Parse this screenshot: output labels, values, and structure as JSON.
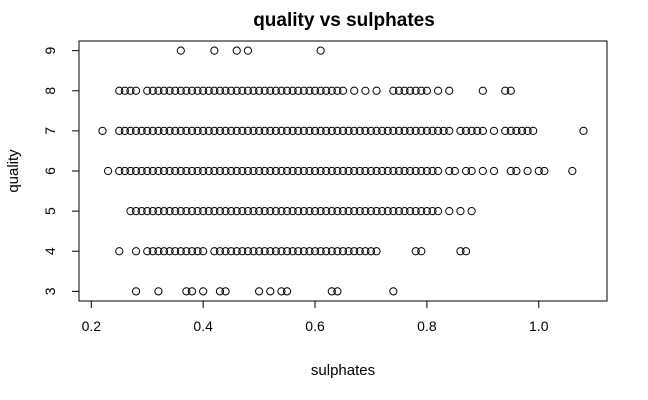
{
  "chart_data": {
    "type": "scatter",
    "title": "quality vs sulphates",
    "xlabel": "sulphates",
    "ylabel": "quality",
    "xlim": [
      0.178,
      1.122
    ],
    "ylim": [
      2.76,
      9.24
    ],
    "xticks": [
      0.2,
      0.4,
      0.6,
      0.8,
      1.0
    ],
    "xtick_labels": [
      "0.2",
      "0.4",
      "0.6",
      "0.8",
      "1.0"
    ],
    "yticks": [
      3,
      4,
      5,
      6,
      7,
      8,
      9
    ],
    "ytick_labels": [
      "3",
      "4",
      "5",
      "6",
      "7",
      "8",
      "9"
    ],
    "marker": "open-circle",
    "marker_color": "#000000",
    "grid": false,
    "legend": "none",
    "points": [
      {
        "y": 9,
        "x": [
          0.36,
          0.42,
          0.46,
          0.48,
          0.61
        ]
      },
      {
        "y": 8,
        "x": [
          0.25,
          0.26,
          0.27,
          0.28,
          0.3,
          0.31,
          0.32,
          0.33,
          0.34,
          0.35,
          0.36,
          0.37,
          0.38,
          0.39,
          0.4,
          0.41,
          0.42,
          0.43,
          0.44,
          0.45,
          0.46,
          0.47,
          0.48,
          0.49,
          0.5,
          0.51,
          0.52,
          0.53,
          0.54,
          0.55,
          0.56,
          0.57,
          0.58,
          0.59,
          0.6,
          0.61,
          0.62,
          0.63,
          0.64,
          0.65,
          0.67,
          0.69,
          0.71,
          0.74,
          0.75,
          0.76,
          0.77,
          0.78,
          0.79,
          0.8,
          0.82,
          0.84,
          0.9,
          0.94,
          0.95
        ]
      },
      {
        "y": 7,
        "x": [
          0.22,
          0.25,
          0.26,
          0.27,
          0.28,
          0.29,
          0.3,
          0.31,
          0.32,
          0.33,
          0.34,
          0.35,
          0.36,
          0.37,
          0.38,
          0.39,
          0.4,
          0.41,
          0.42,
          0.43,
          0.44,
          0.45,
          0.46,
          0.47,
          0.48,
          0.49,
          0.5,
          0.51,
          0.52,
          0.53,
          0.54,
          0.55,
          0.56,
          0.57,
          0.58,
          0.59,
          0.6,
          0.61,
          0.62,
          0.63,
          0.64,
          0.65,
          0.66,
          0.67,
          0.68,
          0.69,
          0.7,
          0.71,
          0.72,
          0.73,
          0.74,
          0.75,
          0.76,
          0.77,
          0.78,
          0.79,
          0.8,
          0.81,
          0.82,
          0.83,
          0.84,
          0.86,
          0.87,
          0.88,
          0.89,
          0.9,
          0.92,
          0.94,
          0.95,
          0.96,
          0.97,
          0.98,
          0.99,
          1.08
        ]
      },
      {
        "y": 6,
        "x": [
          0.23,
          0.25,
          0.26,
          0.27,
          0.28,
          0.29,
          0.3,
          0.31,
          0.32,
          0.33,
          0.34,
          0.35,
          0.36,
          0.37,
          0.38,
          0.39,
          0.4,
          0.41,
          0.42,
          0.43,
          0.44,
          0.45,
          0.46,
          0.47,
          0.48,
          0.49,
          0.5,
          0.51,
          0.52,
          0.53,
          0.54,
          0.55,
          0.56,
          0.57,
          0.58,
          0.59,
          0.6,
          0.61,
          0.62,
          0.63,
          0.64,
          0.65,
          0.66,
          0.67,
          0.68,
          0.69,
          0.7,
          0.71,
          0.72,
          0.73,
          0.74,
          0.75,
          0.76,
          0.77,
          0.78,
          0.79,
          0.8,
          0.81,
          0.82,
          0.84,
          0.85,
          0.87,
          0.88,
          0.9,
          0.92,
          0.95,
          0.96,
          0.98,
          1.0,
          1.01,
          1.06
        ]
      },
      {
        "y": 5,
        "x": [
          0.27,
          0.28,
          0.29,
          0.3,
          0.31,
          0.32,
          0.33,
          0.34,
          0.35,
          0.36,
          0.37,
          0.38,
          0.39,
          0.4,
          0.41,
          0.42,
          0.43,
          0.44,
          0.45,
          0.46,
          0.47,
          0.48,
          0.49,
          0.5,
          0.51,
          0.52,
          0.53,
          0.54,
          0.55,
          0.56,
          0.57,
          0.58,
          0.59,
          0.6,
          0.61,
          0.62,
          0.63,
          0.64,
          0.65,
          0.66,
          0.67,
          0.68,
          0.69,
          0.7,
          0.71,
          0.72,
          0.73,
          0.74,
          0.75,
          0.76,
          0.77,
          0.78,
          0.79,
          0.8,
          0.81,
          0.82,
          0.84,
          0.86,
          0.88
        ]
      },
      {
        "y": 4,
        "x": [
          0.25,
          0.28,
          0.3,
          0.31,
          0.32,
          0.33,
          0.34,
          0.35,
          0.36,
          0.37,
          0.38,
          0.39,
          0.4,
          0.42,
          0.43,
          0.44,
          0.45,
          0.46,
          0.47,
          0.48,
          0.49,
          0.5,
          0.51,
          0.52,
          0.53,
          0.54,
          0.55,
          0.56,
          0.57,
          0.58,
          0.59,
          0.6,
          0.61,
          0.62,
          0.63,
          0.64,
          0.65,
          0.66,
          0.67,
          0.68,
          0.69,
          0.7,
          0.71,
          0.78,
          0.79,
          0.86,
          0.87
        ]
      },
      {
        "y": 3,
        "x": [
          0.28,
          0.32,
          0.37,
          0.38,
          0.4,
          0.43,
          0.44,
          0.5,
          0.52,
          0.54,
          0.55,
          0.63,
          0.64,
          0.74
        ]
      }
    ]
  }
}
